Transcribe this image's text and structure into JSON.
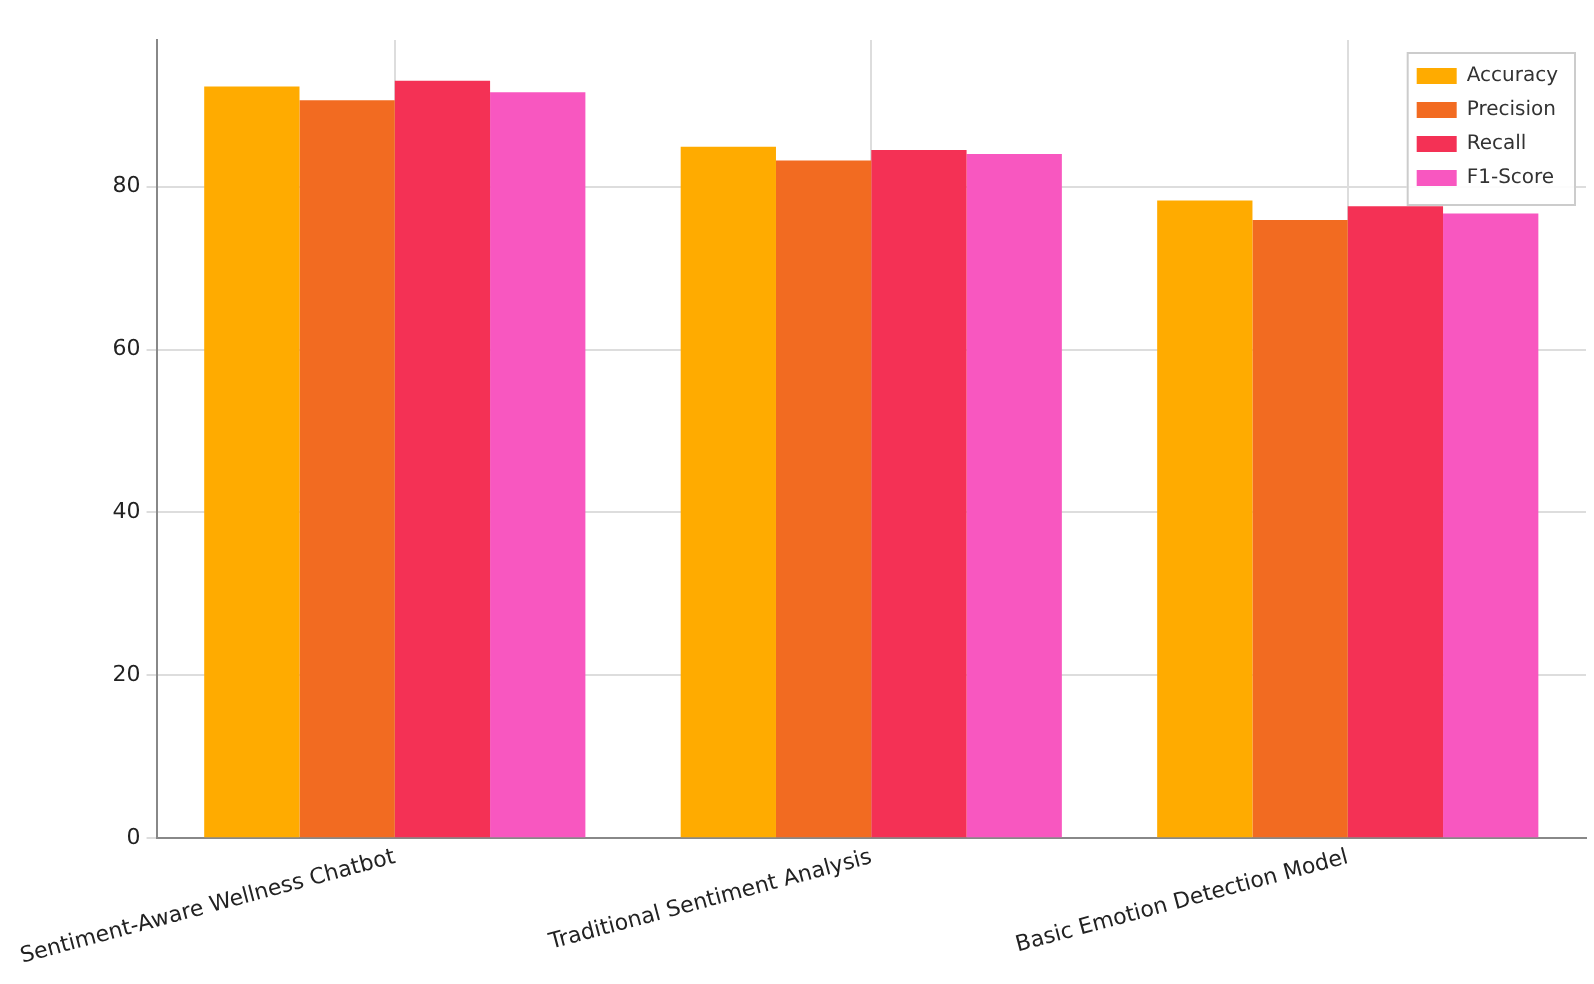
{
  "chart_data": {
    "type": "bar",
    "categories": [
      "Sentiment-Aware Wellness Chatbot",
      "Traditional Sentiment Analysis",
      "Basic Emotion Detection Model"
    ],
    "series": [
      {
        "name": "Accuracy",
        "color": "#ffab00",
        "values": [
          92.3,
          84.9,
          78.3
        ]
      },
      {
        "name": "Precision",
        "color": "#f26b21",
        "values": [
          90.6,
          83.2,
          75.9
        ]
      },
      {
        "name": "Recall",
        "color": "#f43155",
        "values": [
          93.0,
          84.5,
          77.6
        ]
      },
      {
        "name": "F1-Score",
        "color": "#f857c0",
        "values": [
          91.6,
          84.0,
          76.7
        ]
      }
    ],
    "ylim": [
      0,
      98
    ],
    "yticks": [
      0,
      20,
      40,
      60,
      80
    ],
    "grid": true,
    "legend": "top right"
  }
}
